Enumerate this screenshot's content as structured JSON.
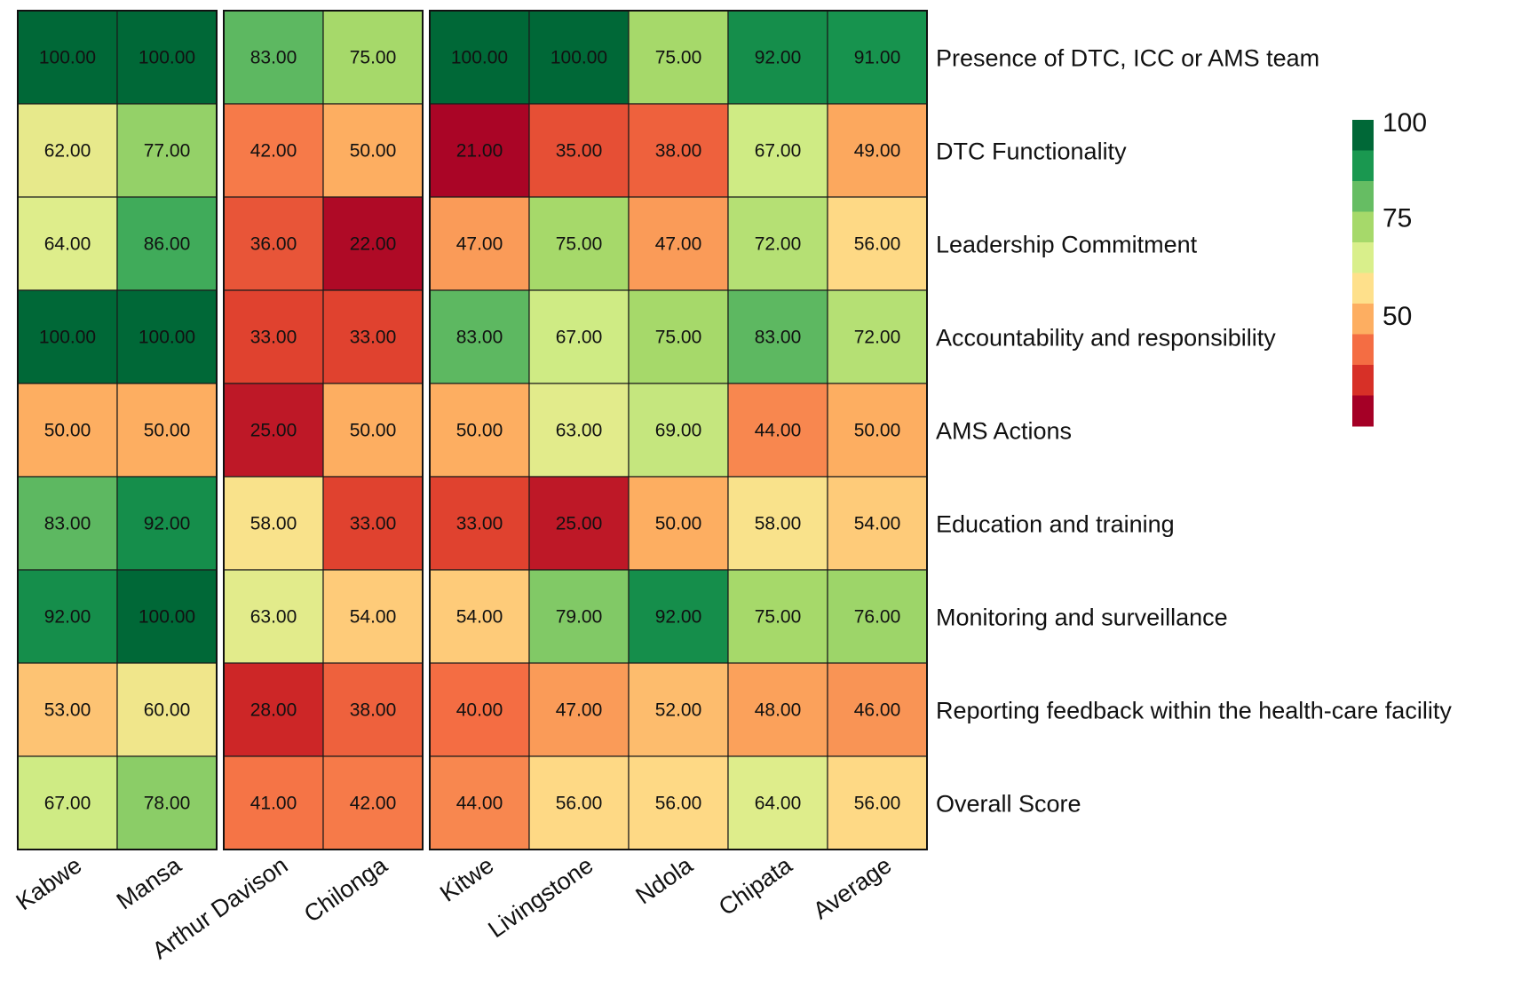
{
  "chart_data": {
    "type": "heatmap",
    "columns": [
      "Kabwe",
      "Mansa",
      "Arthur Davison",
      "Chilonga",
      "Kitwe",
      "Livingstone",
      "Ndola",
      "Chipata",
      "Average"
    ],
    "column_groups": [
      [
        "Kabwe",
        "Mansa"
      ],
      [
        "Arthur Davison",
        "Chilonga"
      ],
      [
        "Kitwe",
        "Livingstone",
        "Ndola",
        "Chipata",
        "Average"
      ]
    ],
    "rows": [
      "Presence of DTC, ICC or AMS team",
      "DTC Functionality",
      "Leadership Commitment",
      "Accountability and responsibility",
      "AMS Actions",
      "Education and training",
      "Monitoring and surveillance",
      "Reporting feedback within the health-care facility",
      "Overall Score"
    ],
    "values": [
      [
        100,
        100,
        83,
        75,
        100,
        100,
        75,
        92,
        91
      ],
      [
        62,
        77,
        42,
        50,
        21,
        35,
        38,
        67,
        49
      ],
      [
        64,
        86,
        36,
        22,
        47,
        75,
        47,
        72,
        56
      ],
      [
        100,
        100,
        33,
        33,
        83,
        67,
        75,
        83,
        72
      ],
      [
        50,
        50,
        25,
        50,
        50,
        63,
        69,
        44,
        50
      ],
      [
        83,
        92,
        58,
        33,
        33,
        25,
        50,
        58,
        54
      ],
      [
        92,
        100,
        63,
        54,
        54,
        79,
        92,
        75,
        76
      ],
      [
        53,
        60,
        28,
        38,
        40,
        47,
        52,
        48,
        46
      ],
      [
        67,
        78,
        41,
        42,
        44,
        56,
        56,
        64,
        56
      ]
    ],
    "value_format_decimals": 2,
    "legend": {
      "position": "right",
      "ticks": [
        100,
        75,
        50
      ],
      "colors": [
        "#006837",
        "#1a9850",
        "#66bd63",
        "#a6d96a",
        "#d9ef8b",
        "#fee08b",
        "#fdae61",
        "#f46d43",
        "#d73027",
        "#a50026"
      ]
    }
  }
}
